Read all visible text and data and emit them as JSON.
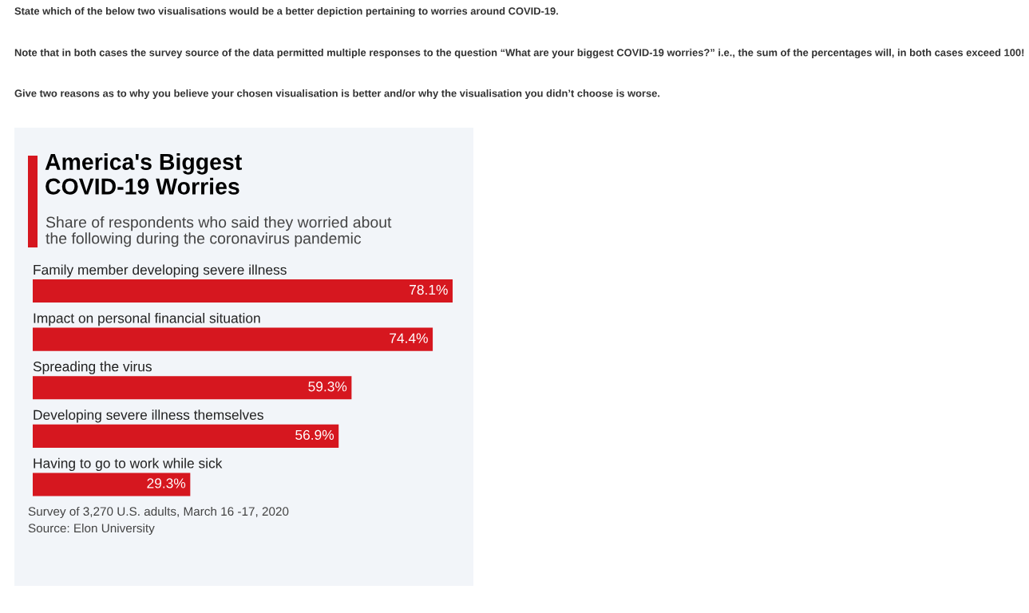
{
  "chart_data": {
    "type": "bar",
    "orientation": "horizontal",
    "title": "America's Biggest\nCOVID-19 Worries",
    "subtitle": "Share of respondents who said they worried about\nthe following during the coronavirus pandemic",
    "categories": [
      "Family member developing severe illness",
      "Impact on personal financial situation",
      "Spreading the virus",
      "Developing severe illness themselves",
      "Having to go to work while sick"
    ],
    "values": [
      78.1,
      74.4,
      59.3,
      56.9,
      29.3
    ],
    "value_labels": [
      "78.1%",
      "74.4%",
      "59.3%",
      "56.9%",
      "29.3%"
    ],
    "color": "#d6171f",
    "annotations": [
      "State which of the below two visualisations would be a better depiction pertaining to worries around COVID-19.",
      "Note that in both cases the survey source of the data permitted multiple responses to the question “What are your biggest COVID-19 worries?” i.e., the sum of the percentages will, in both cases exceed 100!",
      "Give two reasons as to why you believe your chosen visualisation is better and/or why the visualisation you didn’t choose is worse.",
      "Survey of 3,270 U.S. adults, March 16 -17, 2020",
      "Source: Elon University"
    ]
  }
}
